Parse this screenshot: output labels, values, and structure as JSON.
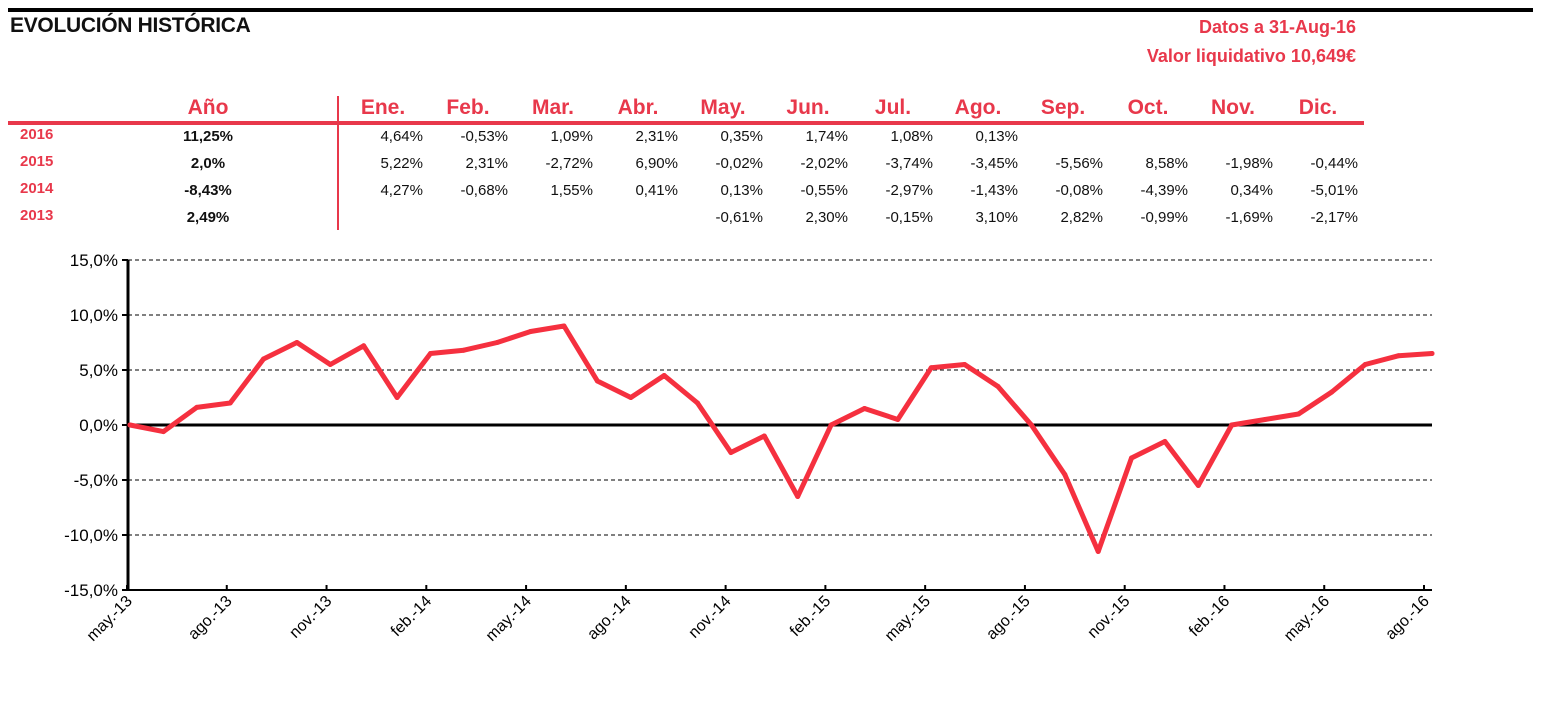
{
  "header": {
    "title": "EVOLUCIÓN HISTÓRICA",
    "date_line": "Datos a 31-Aug-16",
    "nav_line": "Valor liquidativo 10,649€"
  },
  "table": {
    "year_header": "Año",
    "months": [
      "Ene.",
      "Feb.",
      "Mar.",
      "Abr.",
      "May.",
      "Jun.",
      "Jul.",
      "Ago.",
      "Sep.",
      "Oct.",
      "Nov.",
      "Dic."
    ],
    "rows": [
      {
        "year": "2016",
        "annual": "11,25%",
        "values": [
          "4,64%",
          "-0,53%",
          "1,09%",
          "2,31%",
          "0,35%",
          "1,74%",
          "1,08%",
          "0,13%",
          "",
          "",
          "",
          ""
        ]
      },
      {
        "year": "2015",
        "annual": "2,0%",
        "values": [
          "5,22%",
          "2,31%",
          "-2,72%",
          "6,90%",
          "-0,02%",
          "-2,02%",
          "-3,74%",
          "-3,45%",
          "-5,56%",
          "8,58%",
          "-1,98%",
          "-0,44%"
        ]
      },
      {
        "year": "2014",
        "annual": "-8,43%",
        "values": [
          "4,27%",
          "-0,68%",
          "1,55%",
          "0,41%",
          "0,13%",
          "-0,55%",
          "-2,97%",
          "-1,43%",
          "-0,08%",
          "-4,39%",
          "0,34%",
          "-5,01%"
        ]
      },
      {
        "year": "2013",
        "annual": "2,49%",
        "values": [
          "",
          "",
          "",
          "",
          "-0,61%",
          "2,30%",
          "-0,15%",
          "3,10%",
          "2,82%",
          "-0,99%",
          "-1,69%",
          "-2,17%"
        ]
      }
    ]
  },
  "chart_data": {
    "type": "line",
    "ylim": [
      -15,
      15
    ],
    "y_ticks": [
      15,
      10,
      5,
      0,
      -5,
      -10,
      -15
    ],
    "y_tick_labels": [
      "15,0%",
      "10,0%",
      "5,0%",
      "0,0%",
      "-5,0%",
      "-10,0%",
      "-15,0%"
    ],
    "x_tick_labels": [
      "may.-13",
      "ago.-13",
      "nov.-13",
      "feb.-14",
      "may.-14",
      "ago.-14",
      "nov.-14",
      "feb.-15",
      "may.-15",
      "ago.-15",
      "nov.-15",
      "feb.-16",
      "may.-16",
      "ago.-16"
    ],
    "grid": true,
    "series_color": "#f5303f",
    "series": [
      {
        "x": [
          "may.-13",
          "jun.-13",
          "jul.-13",
          "ago.-13",
          "sep.-13",
          "oct.-13",
          "nov.-13",
          "dic.-13",
          "ene.-14",
          "feb.-14",
          "mar.-14",
          "abr.-14",
          "may.-14",
          "jun.-14",
          "jul.-14",
          "ago.-14",
          "sep.-14",
          "oct.-14",
          "nov.-14",
          "dic.-14",
          "ene.-15",
          "feb.-15",
          "mar.-15",
          "abr.-15",
          "may.-15",
          "jun.-15",
          "jul.-15",
          "ago.-15",
          "sep.-15",
          "oct.-15",
          "nov.-15",
          "dic.-15",
          "ene.-16",
          "feb.-16",
          "mar.-16",
          "abr.-16",
          "may.-16",
          "jun.-16",
          "jul.-16",
          "ago.-16"
        ],
        "values": [
          0.0,
          -0.6,
          1.6,
          2.0,
          6.0,
          7.5,
          5.5,
          7.2,
          2.5,
          6.5,
          6.8,
          7.5,
          8.5,
          9.0,
          4.0,
          2.5,
          4.5,
          2.0,
          -2.5,
          -1.0,
          -6.5,
          0.0,
          1.5,
          0.5,
          5.2,
          5.5,
          3.5,
          0.0,
          -4.5,
          -11.5,
          -3.0,
          -1.5,
          -5.5,
          0.0,
          0.5,
          1.0,
          3.0,
          5.5,
          6.3,
          6.5
        ]
      }
    ]
  }
}
